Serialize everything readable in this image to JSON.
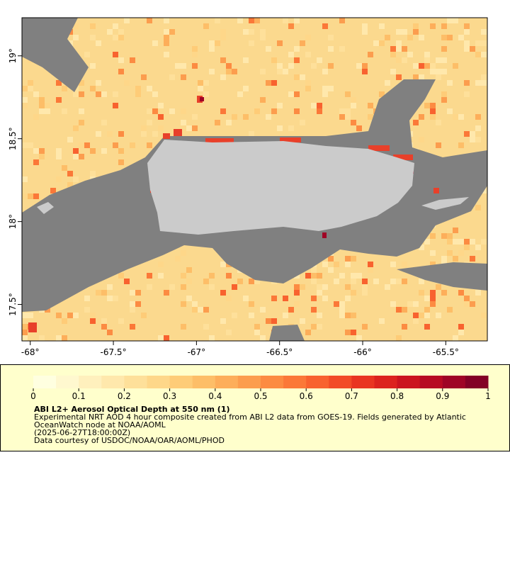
{
  "map": {
    "xlim": [
      -68.05,
      -65.25
    ],
    "ylim": [
      17.28,
      19.23
    ],
    "xticks": [
      {
        "value": -68,
        "label": "-68°"
      },
      {
        "value": -67.5,
        "label": "-67.5°"
      },
      {
        "value": -67,
        "label": "-67°"
      },
      {
        "value": -66.5,
        "label": "-66.5°"
      },
      {
        "value": -66,
        "label": "-66°"
      },
      {
        "value": -65.5,
        "label": "-65.5°"
      }
    ],
    "yticks": [
      {
        "value": 17.5,
        "label": "17.5°"
      },
      {
        "value": 18,
        "label": "18°"
      },
      {
        "value": 18.5,
        "label": "18.5°"
      },
      {
        "value": 19,
        "label": "19°"
      }
    ],
    "colorbar": {
      "lim": [
        0,
        1
      ],
      "ticks": [
        0,
        0.1,
        0.2,
        0.3,
        0.4,
        0.5,
        0.6,
        0.7,
        0.8,
        0.9,
        1
      ],
      "colors": [
        "#ffffe0",
        "#fff8cf",
        "#fff0bd",
        "#ffe8ac",
        "#fee09a",
        "#fed789",
        "#fecc78",
        "#fdbe68",
        "#fdae5a",
        "#fc9d4e",
        "#fc8b42",
        "#fb7838",
        "#f8622f",
        "#f24b27",
        "#e93521",
        "#dc231e",
        "#cb141f",
        "#b70a23",
        "#9f0426",
        "#830026"
      ]
    },
    "legend": {
      "title": "ABI L2+ Aerosol Optical Depth at 550 nm (1)",
      "lines": [
        "Experimental NRT AOD 4 hour composite created from ABI L2 data from GOES-19. Fields generated by Atlantic",
        "OceanWatch node at NOAA/AOML",
        "(2025-06-27T18:00:00Z)",
        "Data courtesy of USDOC/NOAA/OAR/AOML/PHOD"
      ]
    }
  }
}
